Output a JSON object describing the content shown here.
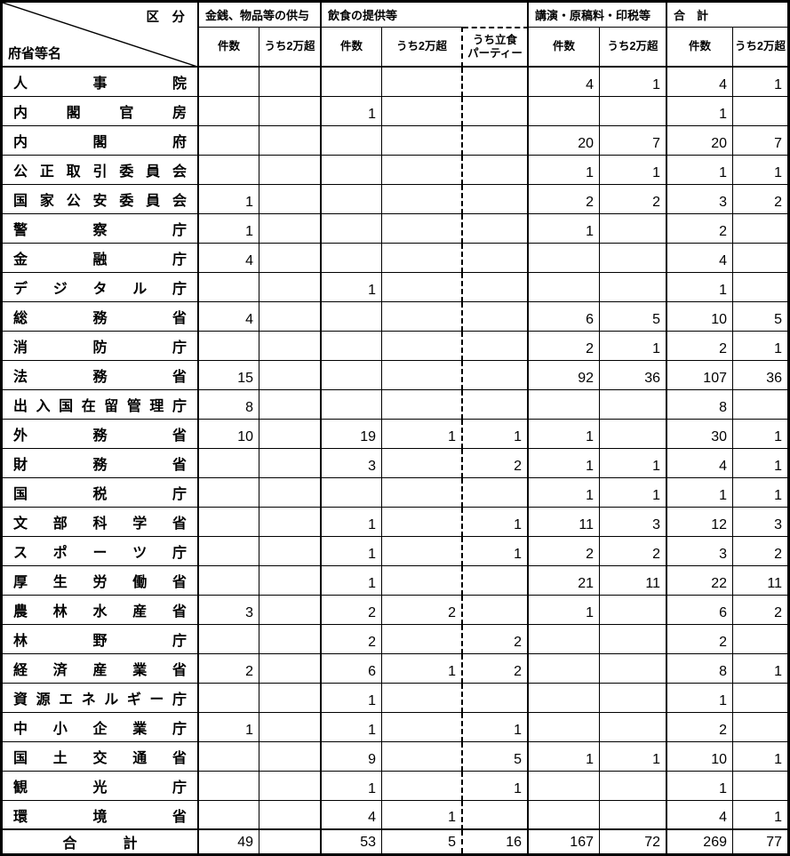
{
  "header": {
    "corner": {
      "category_label": "区　分",
      "name_label": "府省等名"
    },
    "groups": [
      {
        "label": "金銭、物品等の供与",
        "subs": [
          "件数",
          "うち2万超"
        ]
      },
      {
        "label": "飲食の提供等",
        "subs": [
          "件数",
          "うち2万超"
        ]
      },
      {
        "label": "講演・原稿料・印税等",
        "subs": [
          "件数",
          "うち2万超"
        ]
      },
      {
        "label": "合　計",
        "subs": [
          "件数",
          "うち2万超"
        ]
      }
    ],
    "risshoku": {
      "line1": "うち立食",
      "line2": "パーティー"
    }
  },
  "columns": [
    "金銭件数",
    "金銭うち2万超",
    "飲食件数",
    "飲食うち2万超",
    "うち立食パーティー",
    "講演件数",
    "講演うち2万超",
    "合計件数",
    "合計うち2万超"
  ],
  "rows": [
    {
      "name": "人事院",
      "values": [
        "",
        "",
        "",
        "",
        "",
        "4",
        "1",
        "4",
        "1"
      ]
    },
    {
      "name": "内閣官房",
      "values": [
        "",
        "",
        "1",
        "",
        "",
        "",
        "",
        "1",
        ""
      ]
    },
    {
      "name": "内閣府",
      "values": [
        "",
        "",
        "",
        "",
        "",
        "20",
        "7",
        "20",
        "7"
      ]
    },
    {
      "name": "公正取引委員会",
      "values": [
        "",
        "",
        "",
        "",
        "",
        "1",
        "1",
        "1",
        "1"
      ]
    },
    {
      "name": "国家公安委員会",
      "values": [
        "1",
        "",
        "",
        "",
        "",
        "2",
        "2",
        "3",
        "2"
      ]
    },
    {
      "name": "警察庁",
      "values": [
        "1",
        "",
        "",
        "",
        "",
        "1",
        "",
        "2",
        ""
      ]
    },
    {
      "name": "金融庁",
      "values": [
        "4",
        "",
        "",
        "",
        "",
        "",
        "",
        "4",
        ""
      ]
    },
    {
      "name": "デジタル庁",
      "values": [
        "",
        "",
        "1",
        "",
        "",
        "",
        "",
        "1",
        ""
      ]
    },
    {
      "name": "総務省",
      "values": [
        "4",
        "",
        "",
        "",
        "",
        "6",
        "5",
        "10",
        "5"
      ]
    },
    {
      "name": "消防庁",
      "values": [
        "",
        "",
        "",
        "",
        "",
        "2",
        "1",
        "2",
        "1"
      ]
    },
    {
      "name": "法務省",
      "values": [
        "15",
        "",
        "",
        "",
        "",
        "92",
        "36",
        "107",
        "36"
      ]
    },
    {
      "name": "出入国在留管理庁",
      "values": [
        "8",
        "",
        "",
        "",
        "",
        "",
        "",
        "8",
        ""
      ]
    },
    {
      "name": "外務省",
      "values": [
        "10",
        "",
        "19",
        "1",
        "1",
        "1",
        "",
        "30",
        "1"
      ]
    },
    {
      "name": "財務省",
      "values": [
        "",
        "",
        "3",
        "",
        "2",
        "1",
        "1",
        "4",
        "1"
      ]
    },
    {
      "name": "国税庁",
      "values": [
        "",
        "",
        "",
        "",
        "",
        "1",
        "1",
        "1",
        "1"
      ]
    },
    {
      "name": "文部科学省",
      "values": [
        "",
        "",
        "1",
        "",
        "1",
        "11",
        "3",
        "12",
        "3"
      ]
    },
    {
      "name": "スポーツ庁",
      "values": [
        "",
        "",
        "1",
        "",
        "1",
        "2",
        "2",
        "3",
        "2"
      ]
    },
    {
      "name": "厚生労働省",
      "values": [
        "",
        "",
        "1",
        "",
        "",
        "21",
        "11",
        "22",
        "11"
      ]
    },
    {
      "name": "農林水産省",
      "values": [
        "3",
        "",
        "2",
        "2",
        "",
        "1",
        "",
        "6",
        "2"
      ]
    },
    {
      "name": "林野庁",
      "values": [
        "",
        "",
        "2",
        "",
        "2",
        "",
        "",
        "2",
        ""
      ]
    },
    {
      "name": "経済産業省",
      "values": [
        "2",
        "",
        "6",
        "1",
        "2",
        "",
        "",
        "8",
        "1"
      ]
    },
    {
      "name": "資源エネルギー庁",
      "values": [
        "",
        "",
        "1",
        "",
        "",
        "",
        "",
        "1",
        ""
      ]
    },
    {
      "name": "中小企業庁",
      "values": [
        "1",
        "",
        "1",
        "",
        "1",
        "",
        "",
        "2",
        ""
      ]
    },
    {
      "name": "国土交通省",
      "values": [
        "",
        "",
        "9",
        "",
        "5",
        "1",
        "1",
        "10",
        "1"
      ]
    },
    {
      "name": "観光庁",
      "values": [
        "",
        "",
        "1",
        "",
        "1",
        "",
        "",
        "1",
        ""
      ]
    },
    {
      "name": "環境省",
      "values": [
        "",
        "",
        "4",
        "1",
        "",
        "",
        "",
        "4",
        "1"
      ]
    }
  ],
  "total_row": {
    "name": "合計",
    "values": [
      "49",
      "",
      "53",
      "5",
      "16",
      "167",
      "72",
      "269",
      "77"
    ]
  },
  "colors": {
    "border": "#000000",
    "background": "#ffffff",
    "text": "#000000"
  }
}
